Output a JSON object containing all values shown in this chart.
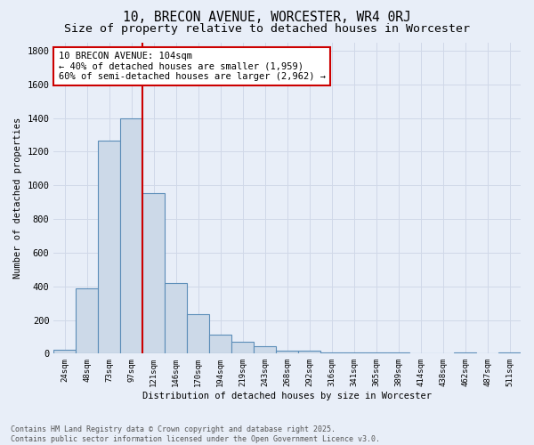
{
  "title": "10, BRECON AVENUE, WORCESTER, WR4 0RJ",
  "subtitle": "Size of property relative to detached houses in Worcester",
  "xlabel": "Distribution of detached houses by size in Worcester",
  "ylabel": "Number of detached properties",
  "categories": [
    "24sqm",
    "48sqm",
    "73sqm",
    "97sqm",
    "121sqm",
    "146sqm",
    "170sqm",
    "194sqm",
    "219sqm",
    "243sqm",
    "268sqm",
    "292sqm",
    "316sqm",
    "341sqm",
    "365sqm",
    "389sqm",
    "414sqm",
    "438sqm",
    "462sqm",
    "487sqm",
    "511sqm"
  ],
  "values": [
    25,
    390,
    1265,
    1400,
    955,
    420,
    235,
    115,
    70,
    45,
    20,
    15,
    5,
    5,
    5,
    5,
    0,
    0,
    5,
    0,
    5
  ],
  "bar_color": "#ccd9e8",
  "bar_edge_color": "#5b8db8",
  "grid_color": "#d0d8e8",
  "background_color": "#e8eef8",
  "vline_x": 3.5,
  "vline_color": "#cc0000",
  "annotation_text": "10 BRECON AVENUE: 104sqm\n← 40% of detached houses are smaller (1,959)\n60% of semi-detached houses are larger (2,962) →",
  "annotation_box_color": "#ffffff",
  "annotation_box_edge": "#cc0000",
  "annotation_fontsize": 7.5,
  "title_fontsize": 10.5,
  "subtitle_fontsize": 9.5,
  "footer_text": "Contains HM Land Registry data © Crown copyright and database right 2025.\nContains public sector information licensed under the Open Government Licence v3.0.",
  "ylim": [
    0,
    1850
  ],
  "yticks": [
    0,
    200,
    400,
    600,
    800,
    1000,
    1200,
    1400,
    1600,
    1800
  ]
}
